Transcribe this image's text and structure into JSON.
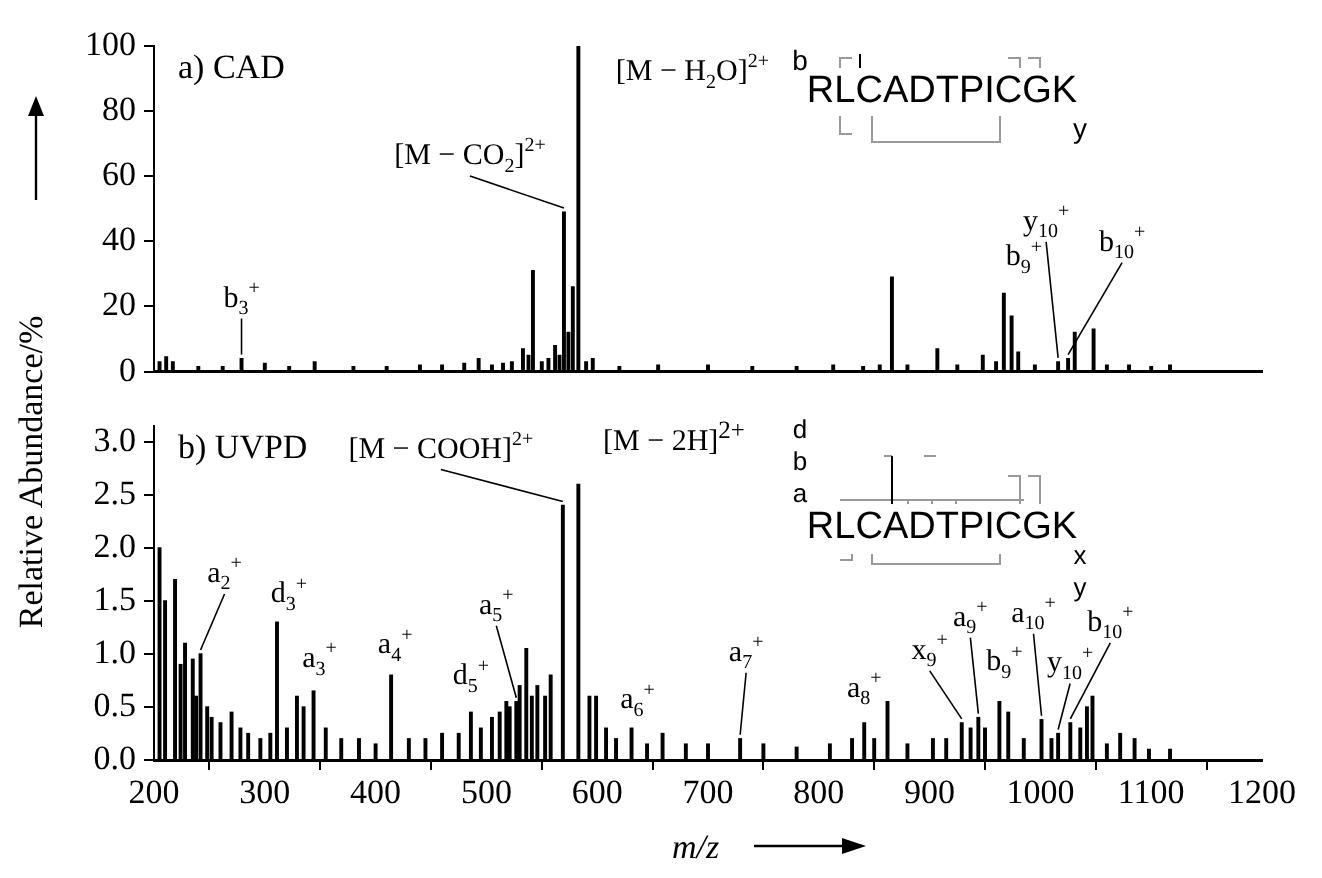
{
  "chart_data": [
    {
      "type": "bar",
      "title": "a) CAD",
      "xlim": [
        200,
        1200
      ],
      "xticks": [
        200,
        300,
        400,
        500,
        600,
        700,
        800,
        900,
        1000,
        1100,
        1200
      ],
      "ylim": [
        0,
        100
      ],
      "yticks": [
        0,
        20,
        40,
        60,
        80,
        100
      ],
      "tick_labels": "y",
      "x": [
        205,
        211,
        217,
        240,
        262,
        279,
        300,
        322,
        345,
        380,
        410,
        440,
        460,
        480,
        493,
        505,
        515,
        523,
        533,
        538,
        542,
        550,
        556,
        562,
        566,
        570,
        574,
        578,
        583,
        590,
        596,
        620,
        655,
        700,
        740,
        780,
        813,
        840,
        855,
        866,
        880,
        907,
        925,
        948,
        960,
        967,
        974,
        980,
        995,
        1016,
        1025,
        1031,
        1048,
        1060,
        1080,
        1100,
        1117
      ],
      "series": [
        {
          "color": "#000000",
          "values": [
            3,
            4.5,
            3,
            1.5,
            1.5,
            4,
            2.5,
            1.5,
            3,
            1.5,
            1.5,
            2,
            2,
            2.5,
            4,
            2,
            2.5,
            3,
            7,
            5,
            31,
            3,
            4,
            8,
            5,
            49,
            12,
            26,
            100,
            3,
            4,
            1.5,
            2,
            2,
            1.5,
            1.5,
            2,
            1.5,
            2,
            29,
            2,
            7,
            2,
            5,
            3,
            24,
            17,
            6,
            2,
            3,
            4,
            12,
            13,
            2,
            2,
            1.5,
            2
          ]
        }
      ],
      "annotations": [
        {
          "text": "b$_{3}$$^{+}$",
          "x": 279,
          "y": 4
        },
        {
          "text": "[M − CO$_{2}$]$^{2+}$",
          "x": 570,
          "y": 49
        },
        {
          "text": "[M − H$_{2}$O]$^{2+}$",
          "x": 583,
          "y": 100
        },
        {
          "text": "b$_{9}$$^{+}$",
          "x": 967,
          "y": 24
        },
        {
          "text": "y$_{10}$$^{+}$",
          "x": 1016,
          "y": 3
        },
        {
          "text": "b$_{10}$$^{+}$",
          "x": 1025,
          "y": 4
        },
        "b",
        "RLCADTPICGK",
        "y"
      ]
    },
    {
      "type": "bar",
      "title": "b) UVPD",
      "xlabel": "m/z",
      "ylabel": "Relative Abundance/%",
      "xlim": [
        200,
        1200
      ],
      "xticks": [
        200,
        300,
        400,
        500,
        600,
        700,
        800,
        900,
        1000,
        1100,
        1200
      ],
      "ylim": [
        0,
        3.15
      ],
      "yticks": [
        {
          "value": 0,
          "label": "0.0"
        },
        {
          "value": 0.5,
          "label": "0.5"
        },
        {
          "value": 1,
          "label": "1.0"
        },
        {
          "value": 1.5,
          "label": "1.5"
        },
        {
          "value": 2,
          "label": "2.0"
        },
        {
          "value": 2.5,
          "label": "2.5"
        },
        {
          "value": 3,
          "label": "3.0"
        }
      ],
      "x": [
        205,
        210,
        219,
        224,
        228,
        235,
        238,
        242,
        248,
        252,
        260,
        270,
        278,
        285,
        296,
        305,
        311,
        320,
        329,
        335,
        344,
        355,
        369,
        385,
        400,
        414,
        430,
        445,
        460,
        475,
        486,
        495,
        505,
        512,
        518,
        521,
        527,
        530,
        536,
        541,
        546,
        553,
        558,
        569,
        583,
        593,
        599,
        608,
        617,
        631,
        645,
        659,
        680,
        700,
        729,
        750,
        780,
        810,
        830,
        841,
        850,
        862,
        880,
        903,
        915,
        929,
        937,
        944,
        950,
        963,
        971,
        985,
        1001,
        1010,
        1016,
        1027,
        1036,
        1042,
        1047,
        1060,
        1072,
        1085,
        1098,
        1117
      ],
      "series": [
        {
          "color": "#000000",
          "values": [
            2.0,
            1.5,
            1.7,
            0.9,
            1.1,
            0.95,
            0.6,
            1.0,
            0.5,
            0.4,
            0.35,
            0.45,
            0.3,
            0.25,
            0.2,
            0.25,
            1.3,
            0.3,
            0.6,
            0.5,
            0.65,
            0.3,
            0.2,
            0.2,
            0.15,
            0.8,
            0.2,
            0.2,
            0.25,
            0.25,
            0.45,
            0.3,
            0.4,
            0.45,
            0.55,
            0.5,
            0.55,
            0.7,
            1.05,
            0.6,
            0.7,
            0.6,
            0.8,
            2.4,
            2.6,
            0.6,
            0.6,
            0.3,
            0.2,
            0.3,
            0.15,
            0.25,
            0.15,
            0.15,
            0.2,
            0.15,
            0.12,
            0.15,
            0.2,
            0.35,
            0.2,
            0.55,
            0.15,
            0.2,
            0.2,
            0.35,
            0.3,
            0.4,
            0.3,
            0.55,
            0.45,
            0.2,
            0.38,
            0.2,
            0.25,
            0.35,
            0.3,
            0.5,
            0.6,
            0.15,
            0.25,
            0.2,
            0.1,
            0.1
          ]
        }
      ],
      "annotations": [
        {
          "text": "[M − COOH]$^{2+}$",
          "x": 569,
          "y": 2.4
        },
        "[M − 2H]$^{2+}$",
        {
          "text": "a$_{2}$$^{+}$",
          "x": 242,
          "y": 1.0
        },
        {
          "text": "d$_{3}$$^{+}$",
          "x": 311,
          "y": 1.3
        },
        {
          "text": "a$_{3}$$^{+}$",
          "x": 344,
          "y": 0.65
        },
        {
          "text": "a$_{4}$$^{+}$",
          "x": 414,
          "y": 0.8
        },
        {
          "text": "d$_{5}$$^{+}$",
          "x": 486,
          "y": 0.45
        },
        {
          "text": "a$_{5}$$^{+}$",
          "x": 527,
          "y": 0.55
        },
        {
          "text": "a$_{6}$$^{+}$",
          "x": 631,
          "y": 0.3
        },
        {
          "text": "a$_{7}$$^{+}$",
          "x": 729,
          "y": 0.2
        },
        {
          "text": "a$_{8}$$^{+}$",
          "x": 841,
          "y": 0.35
        },
        {
          "text": "x$_{9}$$^{+}$",
          "x": 929,
          "y": 0.35
        },
        {
          "text": "a$_{9}$$^{+}$",
          "x": 944,
          "y": 0.4
        },
        {
          "text": "b$_{9}$$^{+}$",
          "x": 971,
          "y": 0.45
        },
        {
          "text": "a$_{10}$$^{+}$",
          "x": 1001,
          "y": 0.38
        },
        {
          "text": "y$_{10}$$^{+}$",
          "x": 1016,
          "y": 0.25
        },
        {
          "text": "b$_{10}$$^{+}$",
          "x": 1027,
          "y": 0.35
        },
        "d",
        "b",
        "a",
        "RLCADTPICGK",
        "x",
        "y"
      ]
    }
  ]
}
